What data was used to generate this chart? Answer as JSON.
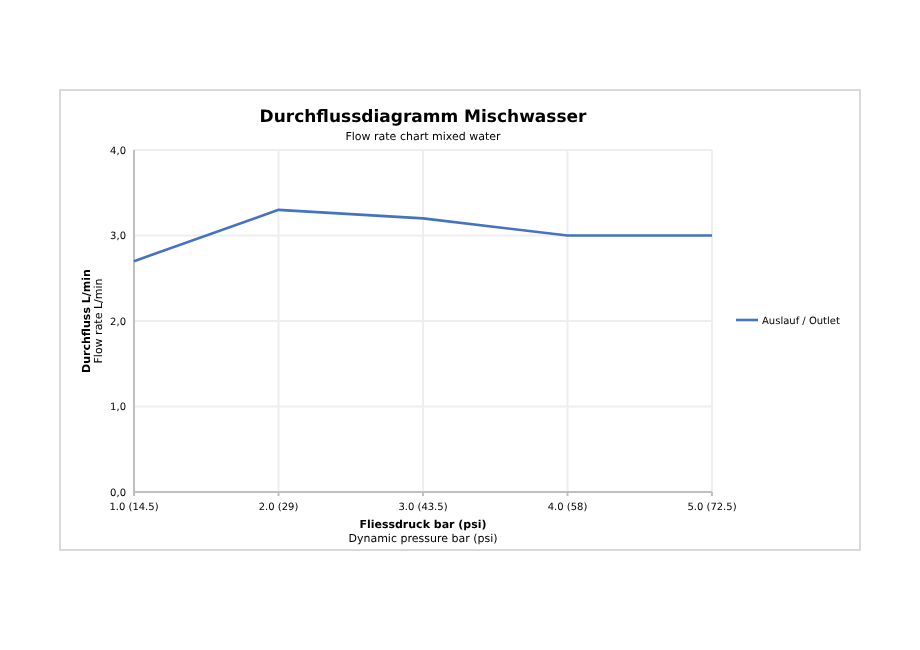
{
  "chart_data": {
    "type": "line",
    "title": "Durchflussdiagramm Mischwasser",
    "subtitle": "Flow rate chart mixed water",
    "xlabel": "Fliessdruck bar (psi)\nDynamic pressure bar (psi)",
    "ylabel": "Durchfluss L/min\nFlow rate L/min",
    "categories": [
      "1.0 (14.5)",
      "2.0 (29)",
      "3.0 (43.5)",
      "4.0 (58)",
      "5.0 (72.5)"
    ],
    "series": [
      {
        "name": "Auslauf / Outlet",
        "color": "#4472c4",
        "values": [
          2.7,
          3.3,
          3.2,
          3.0,
          3.0
        ]
      }
    ],
    "ylim": [
      0,
      4
    ],
    "yticks": [
      {
        "value": 0,
        "label": "0,0"
      },
      {
        "value": 1,
        "label": "1,0"
      },
      {
        "value": 2,
        "label": "2,0"
      },
      {
        "value": 3,
        "label": "3,0"
      },
      {
        "value": 4,
        "label": "4,0"
      }
    ],
    "grid": true,
    "legend": "right",
    "marker": "none",
    "line_style": "solid"
  }
}
